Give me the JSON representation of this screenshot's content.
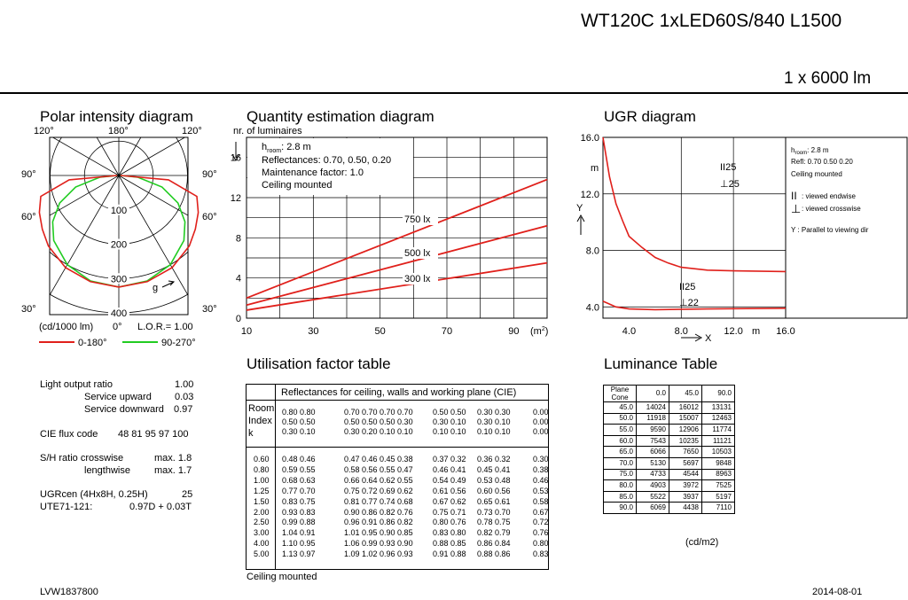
{
  "header": {
    "product": "WT120C 1xLED60S/840 L1500",
    "flux": "1 x 6000 lm"
  },
  "polar": {
    "title": "Polar intensity diagram",
    "angles_top": [
      "120°",
      "180°",
      "120°"
    ],
    "angles_side": [
      "90°",
      "60°",
      "30°"
    ],
    "radial_labels": [
      "100",
      "200",
      "300",
      "400"
    ],
    "units": "(cd/1000 lm)",
    "zero_label": "0°",
    "lor": "L.O.R.= 1.00",
    "gamma_label": "g",
    "legend": [
      {
        "label": "0-180°",
        "color": "#e0201b"
      },
      {
        "label": "90-270°",
        "color": "#22cc22"
      }
    ]
  },
  "quantity": {
    "title": "Quantity estimation diagram",
    "ylabel": "nr. of luminaires",
    "xunit": "(m²)",
    "info": [
      "h_room: 2.8 m",
      "Reflectances: 0.70, 0.50, 0.20",
      "Maintenance factor: 1.0",
      "Ceiling mounted"
    ],
    "info_h": "h",
    "info_sub": "room",
    "info_rest": ": 2.8 m",
    "info_lines": [
      "Reflectances: 0.70, 0.50, 0.20",
      "Maintenance factor: 1.0",
      "Ceiling mounted"
    ],
    "yticks": [
      "0",
      "4",
      "8",
      "12",
      "16"
    ],
    "xticks": [
      "10",
      "30",
      "50",
      "70",
      "90"
    ],
    "curves": [
      {
        "label": "750 lx",
        "x": [
          10,
          100
        ],
        "y": [
          2.0,
          13.8
        ]
      },
      {
        "label": "500 lx",
        "x": [
          10,
          100
        ],
        "y": [
          1.3,
          9.2
        ]
      },
      {
        "label": "300 lx",
        "x": [
          10,
          100
        ],
        "y": [
          0.8,
          5.5
        ]
      }
    ]
  },
  "ugr": {
    "title": "UGR diagram",
    "yticks": [
      "4.0",
      "8.0",
      "12.0",
      "16.0"
    ],
    "xticks": [
      "4.0",
      "8.0",
      "12.0",
      "16.0"
    ],
    "y_unit": "m",
    "x_unit": "m",
    "y_axis": "Y",
    "x_axis": "X",
    "labels": [
      "II25",
      "⊥25",
      "II25",
      "⊥22"
    ],
    "side_h": "h",
    "side_sub": "room",
    "side_rest": ": 2.8 m",
    "side_lines": [
      "Refl: 0.70 0.50 0.20",
      "Ceiling mounted"
    ],
    "legend_end": ": viewed endwise",
    "legend_cross": ": viewed crosswise",
    "legend_y": "Y   : Parallel to viewing dir"
  },
  "utilisation": {
    "title": "Utilisation factor table",
    "header": "Reflectances for ceiling, walls and working plane (CIE)",
    "room_index": [
      "Room",
      "Index",
      "k"
    ],
    "refl_rows": [
      [
        "0.80 0.80",
        "0.70 0.70 0.70 0.70",
        "0.50 0.50",
        "0.30 0.30",
        "0.00"
      ],
      [
        "0.50 0.50",
        "0.50 0.50 0.50 0.30",
        "0.30 0.10",
        "0.30 0.10",
        "0.00"
      ],
      [
        "0.30 0.10",
        "0.30 0.20 0.10 0.10",
        "0.10 0.10",
        "0.10 0.10",
        "0.00"
      ]
    ],
    "rows": [
      [
        "0.60",
        "0.48 0.46",
        "0.47 0.46 0.45 0.38",
        "0.37 0.32",
        "0.36 0.32",
        "0.30"
      ],
      [
        "0.80",
        "0.59 0.55",
        "0.58 0.56 0.55 0.47",
        "0.46 0.41",
        "0.45 0.41",
        "0.38"
      ],
      [
        "1.00",
        "0.68 0.63",
        "0.66 0.64 0.62 0.55",
        "0.54 0.49",
        "0.53 0.48",
        "0.46"
      ],
      [
        "1.25",
        "0.77 0.70",
        "0.75 0.72 0.69 0.62",
        "0.61 0.56",
        "0.60 0.56",
        "0.53"
      ],
      [
        "1.50",
        "0.83 0.75",
        "0.81 0.77 0.74 0.68",
        "0.67 0.62",
        "0.65 0.61",
        "0.58"
      ],
      [
        "2.00",
        "0.93 0.83",
        "0.90 0.86 0.82 0.76",
        "0.75 0.71",
        "0.73 0.70",
        "0.67"
      ],
      [
        "2.50",
        "0.99 0.88",
        "0.96 0.91 0.86 0.82",
        "0.80 0.76",
        "0.78 0.75",
        "0.72"
      ],
      [
        "3.00",
        "1.04 0.91",
        "1.01 0.95 0.90 0.85",
        "0.83 0.80",
        "0.82 0.79",
        "0.76"
      ],
      [
        "4.00",
        "1.10 0.95",
        "1.06 0.99 0.93 0.90",
        "0.88 0.85",
        "0.86 0.84",
        "0.80"
      ],
      [
        "5.00",
        "1.13 0.97",
        "1.09 1.02 0.96 0.93",
        "0.91 0.88",
        "0.88 0.86",
        "0.83"
      ]
    ],
    "footer": "Ceiling mounted"
  },
  "luminance": {
    "title": "Luminance Table",
    "corner_top": "Plane",
    "corner_bottom": "Cone",
    "cols": [
      "0.0",
      "45.0",
      "90.0"
    ],
    "rows": [
      [
        "45.0",
        "14024",
        "16012",
        "13131"
      ],
      [
        "50.0",
        "11918",
        "15007",
        "12463"
      ],
      [
        "55.0",
        "9590",
        "12906",
        "11774"
      ],
      [
        "60.0",
        "7543",
        "10235",
        "11121"
      ],
      [
        "65.0",
        "6066",
        "7650",
        "10503"
      ],
      [
        "70.0",
        "5130",
        "5697",
        "9848"
      ],
      [
        "75.0",
        "4733",
        "4544",
        "8963"
      ],
      [
        "80.0",
        "4903",
        "3972",
        "7525"
      ],
      [
        "85.0",
        "5522",
        "3937",
        "5197"
      ],
      [
        "90.0",
        "6069",
        "4438",
        "7110"
      ]
    ],
    "unit": "(cd/m2)"
  },
  "specs": {
    "lor_label": "Light output ratio",
    "lor_val": "1.00",
    "up_label": "Service upward",
    "up_val": "0.03",
    "down_label": "Service downward",
    "down_val": "0.97",
    "cie_label": "CIE flux code",
    "cie_val": "48 81 95 97 100",
    "sh_label": "S/H ratio crosswise",
    "sh_val": "max. 1.8",
    "sh2_label": "lengthwise",
    "sh2_val": "max. 1.7",
    "ugr_label": "UGRcen (4Hx8H, 0.25H)",
    "ugr_val": "25",
    "ute_label": "UTE71-121:",
    "ute_val": "0.97D + 0.03T"
  },
  "footer": {
    "code": "LVW1837800",
    "date": "2014-08-01"
  }
}
